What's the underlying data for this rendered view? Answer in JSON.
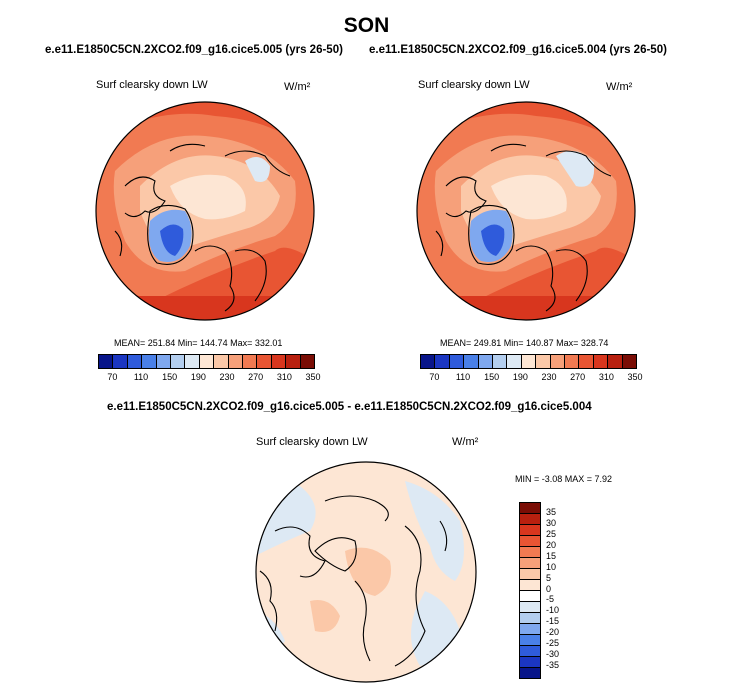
{
  "title": "SON",
  "panel_left": {
    "case_title": "e.e11.E1850C5CN.2XCO2.f09_g16.cice5.005 (yrs 26-50)",
    "variable": "Surf clearsky down LW",
    "units": "W/m²",
    "stats": "MEAN= 251.84  Min= 144.74  Max= 332.01"
  },
  "panel_right": {
    "case_title": "e.e11.E1850C5CN.2XCO2.f09_g16.cice5.004 (yrs 26-50)",
    "variable": "Surf clearsky down LW",
    "units": "W/m²",
    "stats": "MEAN= 249.81  Min= 140.87  Max= 328.74"
  },
  "panel_diff": {
    "case_title": "e.e11.E1850C5CN.2XCO2.f09_g16.cice5.005 - e.e11.E1850C5CN.2XCO2.f09_g16.cice5.004",
    "variable": "Surf clearsky down LW",
    "units": "W/m²",
    "stats": "MIN =  -3.08 MAX =   7.92"
  },
  "colorbar_top": {
    "colors": [
      "#08158a",
      "#1b36c2",
      "#2f5bdb",
      "#4a80e8",
      "#7fa8ef",
      "#b3ceef",
      "#dde9f4",
      "#fde6d4",
      "#fbc8a8",
      "#f6a07a",
      "#f17a52",
      "#e85533",
      "#d8361e",
      "#b8200f",
      "#7a0d05"
    ],
    "labels": [
      "70",
      "110",
      "150",
      "190",
      "230",
      "270",
      "310",
      "350"
    ]
  },
  "colorbar_diff": {
    "colors": [
      "#7a0d05",
      "#b8200f",
      "#d8361e",
      "#e85533",
      "#f17a52",
      "#f6a07a",
      "#fbc8a8",
      "#fde6d4",
      "#ffffff",
      "#dde9f4",
      "#b3ceef",
      "#7fa8ef",
      "#4a80e8",
      "#2f5bdb",
      "#1b36c2",
      "#08158a"
    ],
    "labels": [
      "35",
      "30",
      "25",
      "20",
      "15",
      "10",
      "5",
      "0",
      "-5",
      "-10",
      "-15",
      "-20",
      "-25",
      "-30",
      "-35"
    ]
  }
}
